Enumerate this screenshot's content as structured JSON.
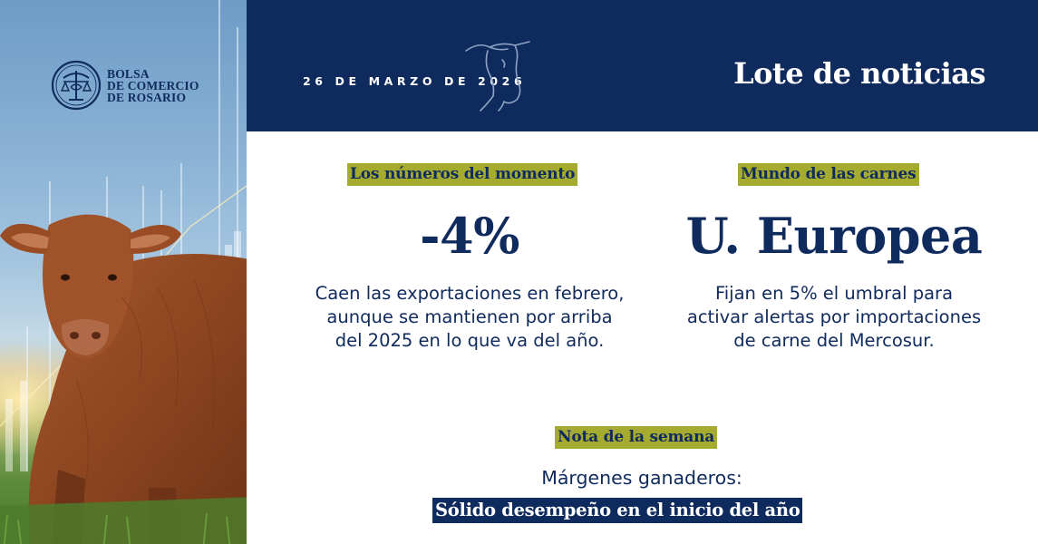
{
  "brand": {
    "name_lines": [
      "BOLSA",
      "DE COMERCIO",
      "DE ROSARIO"
    ]
  },
  "header": {
    "date": "26 DE MARZO DE 2026",
    "title": "Lote de noticias",
    "background_color": "#0f2a5c"
  },
  "sections": {
    "numbers": {
      "tag": "Los números del momento",
      "headline": "-4%",
      "description_lines": [
        "Caen las exportaciones en febrero,",
        "aunque se mantienen por arriba",
        "del 2025 en lo que va del año."
      ]
    },
    "meats": {
      "tag": "Mundo de las carnes",
      "headline": "U. Europea",
      "description_lines": [
        "Fijan en 5% el umbral para",
        "activar alertas por importaciones",
        "de carne del Mercosur."
      ]
    },
    "weekly_note": {
      "tag": "Nota de la semana",
      "line1": "Márgenes ganaderos:",
      "line2": "Sólido desempeño en el inicio del año"
    }
  },
  "colors": {
    "navy": "#0f2a5c",
    "tag_green": "#a4ab2f",
    "white": "#ffffff"
  },
  "icons": {
    "logo": "bolsa-seal-icon",
    "header_decoration": "cow-head-outline-icon"
  },
  "photo": {
    "subject": "brown-cow-in-field"
  }
}
